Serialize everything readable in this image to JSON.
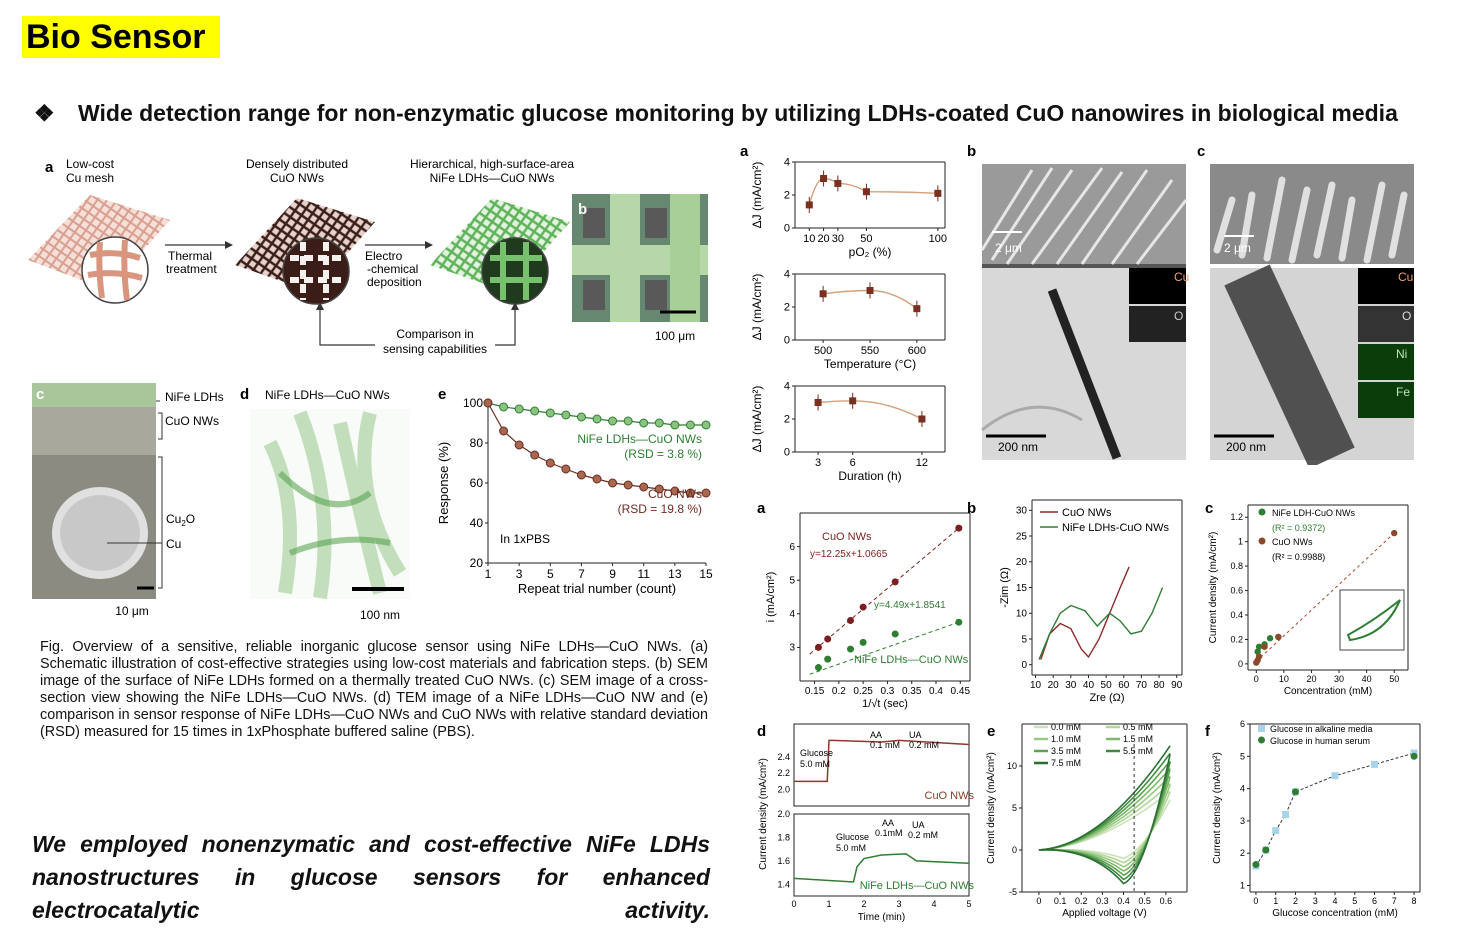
{
  "header": {
    "badge": "Bio Sensor",
    "bullet": "❖",
    "title": "Wide detection range for non-enzymatic glucose monitoring by utilizing LDHs-coated CuO nanowires in biological media"
  },
  "left_figure": {
    "panel_a": {
      "label": "a",
      "step1_line1": "Low-cost",
      "step1_line2": "Cu mesh",
      "step2_line1": "Densely distributed",
      "step2_line2": "CuO NWs",
      "step3_line1": "Hierarchical, high-surface-area",
      "step3_line2": "NiFe LDHs—CuO NWs",
      "arrow1_line1": "Thermal",
      "arrow1_line2": "treatment",
      "arrow2_line1": "Electro",
      "arrow2_line2": "-chemical",
      "arrow2_line3": "deposition",
      "compare_line1": "Comparison in",
      "compare_line2": "sensing capabilities"
    },
    "panel_b": {
      "label": "b",
      "scale": "100 μm"
    },
    "panel_c": {
      "label": "c",
      "layer1": "NiFe LDHs",
      "layer2": "CuO NWs",
      "layer3": "Cu",
      "layer3_sub": "2",
      "layer3_tail": "O",
      "layer4": "Cu",
      "scale": "10 μm"
    },
    "panel_d": {
      "label": "d",
      "title": "NiFe LDHs—CuO NWs",
      "scale": "100 nm"
    },
    "panel_e": {
      "label": "e",
      "note": "In 1xPBS",
      "series1_label": "NiFe LDHs—CuO NWs",
      "series1_rsd": "(RSD = 3.8 %)",
      "series2_label": "CuO NWs",
      "series2_rsd": "(RSD = 19.8 %)"
    }
  },
  "caption": "Fig. Overview of a sensitive, reliable inorganic glucose sensor using NiFe LDHs—CuO NWs. (a) Schematic illustration of cost-effective strategies using low-cost materials and fabrication steps. (b) SEM image of the surface of NiFe LDHs formed on a thermally treated CuO NWs. (c) SEM image of a cross-section view showing the NiFe LDHs—CuO NWs. (d) TEM image of a NiFe LDHs—CuO NW and (e) comparison in sensor response of NiFe LDHs—CuO NWs and CuO NWs with relative standard deviation (RSD) measured for 15 times in 1xPhosphate buffered saline (PBS).",
  "summary": "We employed nonenzymatic and cost-effective NiFe LDHs nanostructures in glucose sensors for enhanced electrocatalytic activity.",
  "right_top": {
    "label_a": "a",
    "label_b": "b",
    "label_c": "c",
    "b_scale1": "2 μm",
    "b_scale2": "200 nm",
    "b_map1": "Cu",
    "b_map2": "O",
    "c_scale1": "2 μm",
    "c_scale2": "200 nm",
    "c_map1": "Cu",
    "c_map2": "O",
    "c_map3": "Ni",
    "c_map4": "Fe"
  },
  "right_bottom": {
    "label_a": "a",
    "label_b": "b",
    "label_c": "c",
    "label_d": "d",
    "label_e": "e",
    "label_f": "f",
    "a_s1": "CuO NWs",
    "a_eq1": "y=12.25x+1.0665",
    "a_eq2": "y=4.49x+1.8541",
    "a_s2": "NiFe LDHs—CuO NWs",
    "b_legend1": "CuO NWs",
    "b_legend2": "NiFe LDHs-CuO NWs",
    "c_legend1": "NiFe LDH-CuO NWs",
    "c_r1": "(R² = 0.9372)",
    "c_legend2": "CuO NWs",
    "c_r2": "(R² = 0.9988)",
    "d_glucose": "Glucose",
    "d_glucose_c": "5.0 mM",
    "d_aa": "AA",
    "d_aa_c": "0.1 mM",
    "d_ua": "UA",
    "d_ua_c": "0.2 mM",
    "d_s1": "CuO NWs",
    "d_glucose2": "Glucose",
    "d_glucose2_c": "5.0 mM",
    "d_aa2": "AA",
    "d_aa2_c": "0.1mM",
    "d_ua2": "UA",
    "d_ua2_c": "0.2 mM",
    "d_s2": "NiFe LDHs—CuO NWs",
    "e_legend": [
      "0.0 mM",
      "0.5 mM",
      "1.0 mM",
      "1.5 mM",
      "3.5 mM",
      "5.5 mM",
      "7.5 mM"
    ],
    "f_legend1": "Glucose in alkaline media",
    "f_legend2": "Glucose in human serum"
  },
  "colors": {
    "accent_red": "#8b3a2a",
    "accent_green": "#2e7d32",
    "badge": "#ffff00"
  },
  "chart_data": [
    {
      "id": "left-e",
      "type": "line",
      "xlabel": "Repeat trial number (count)",
      "ylabel": "Response (%)",
      "xlim": [
        1,
        15
      ],
      "ylim": [
        20,
        100
      ],
      "xticks": [
        1,
        3,
        5,
        7,
        9,
        11,
        13,
        15
      ],
      "yticks": [
        20,
        40,
        60,
        80,
        100
      ],
      "series": [
        {
          "name": "NiFe LDHs—CuO NWs",
          "x": [
            1,
            2,
            3,
            4,
            5,
            6,
            7,
            8,
            9,
            10,
            11,
            12,
            13,
            14,
            15
          ],
          "values": [
            100,
            98,
            97,
            96,
            95,
            94,
            93,
            92,
            91,
            91,
            90,
            90,
            89,
            89,
            89
          ]
        },
        {
          "name": "CuO NWs",
          "x": [
            1,
            2,
            3,
            4,
            5,
            6,
            7,
            8,
            9,
            10,
            11,
            12,
            13,
            14,
            15
          ],
          "values": [
            100,
            86,
            79,
            74,
            70,
            67,
            64,
            62,
            60,
            59,
            58,
            57,
            56,
            55,
            55
          ]
        }
      ]
    },
    {
      "id": "right-a1",
      "type": "scatter",
      "xlabel": "pO₂ (%)",
      "ylabel": "ΔJ (mA/cm²)",
      "xlim": [
        0,
        105
      ],
      "ylim": [
        0,
        4
      ],
      "xticks": [
        10,
        20,
        30,
        50,
        100
      ],
      "yticks": [
        0,
        2,
        4
      ],
      "series": [
        {
          "name": "ΔJ",
          "x": [
            10,
            20,
            30,
            50,
            100
          ],
          "values": [
            1.4,
            3.0,
            2.7,
            2.2,
            2.1
          ]
        }
      ]
    },
    {
      "id": "right-a2",
      "type": "scatter",
      "xlabel": "Temperature (°C)",
      "ylabel": "ΔJ (mA/cm²)",
      "xlim": [
        470,
        630
      ],
      "ylim": [
        0,
        4
      ],
      "xticks": [
        500,
        550,
        600
      ],
      "yticks": [
        0,
        2,
        4
      ],
      "series": [
        {
          "name": "ΔJ",
          "x": [
            500,
            550,
            600
          ],
          "values": [
            2.8,
            3.0,
            1.9
          ]
        }
      ]
    },
    {
      "id": "right-a3",
      "type": "scatter",
      "xlabel": "Duration (h)",
      "ylabel": "ΔJ (mA/cm²)",
      "xlim": [
        1,
        14
      ],
      "ylim": [
        0,
        4
      ],
      "xticks": [
        3,
        6,
        12
      ],
      "yticks": [
        0,
        2,
        4
      ],
      "series": [
        {
          "name": "ΔJ",
          "x": [
            3,
            6,
            12
          ],
          "values": [
            3.0,
            3.1,
            2.0
          ]
        }
      ]
    },
    {
      "id": "right-ba",
      "type": "scatter",
      "xlabel": "1/√t (sec)",
      "ylabel": "i (mA/cm²)",
      "xlim": [
        0.12,
        0.47
      ],
      "ylim": [
        2,
        7
      ],
      "xticks": [
        0.15,
        0.2,
        0.25,
        0.3,
        0.35,
        0.4,
        0.45
      ],
      "yticks": [
        3,
        4,
        5,
        6
      ],
      "series": [
        {
          "name": "CuO NWs",
          "x": [
            0.158,
            0.177,
            0.224,
            0.25,
            0.316,
            0.447
          ],
          "values": [
            3.0,
            3.25,
            3.8,
            4.2,
            4.95,
            6.55
          ]
        },
        {
          "name": "NiFe LDHs—CuO NWs",
          "x": [
            0.158,
            0.177,
            0.224,
            0.25,
            0.316,
            0.447
          ],
          "values": [
            2.4,
            2.65,
            2.95,
            3.15,
            3.4,
            3.75
          ]
        }
      ]
    },
    {
      "id": "right-bb",
      "type": "line",
      "xlabel": "Zre (Ω)",
      "ylabel": "-Zim (Ω)",
      "xlim": [
        8,
        93
      ],
      "ylim": [
        -2,
        32
      ],
      "xticks": [
        10,
        20,
        30,
        40,
        50,
        60,
        70,
        80,
        90
      ],
      "yticks": [
        0,
        5,
        10,
        15,
        20,
        25,
        30
      ],
      "series": [
        {
          "name": "CuO NWs",
          "x": [
            13,
            18,
            24,
            30,
            36,
            40,
            46,
            52,
            58,
            63
          ],
          "values": [
            1,
            6,
            8,
            7,
            3,
            1.5,
            5,
            10,
            15,
            19
          ]
        },
        {
          "name": "NiFe LDHs-CuO NWs",
          "x": [
            12,
            18,
            24,
            30,
            38,
            45,
            52,
            58,
            64,
            70,
            76,
            82
          ],
          "values": [
            1,
            6,
            10,
            11.5,
            10.5,
            7.5,
            10,
            8.5,
            6,
            6.5,
            10,
            15
          ]
        }
      ]
    },
    {
      "id": "right-bc",
      "type": "scatter",
      "xlabel": "Concentration (mM)",
      "ylabel": "Current density (mA/cm²)",
      "xlim": [
        -3,
        55
      ],
      "ylim": [
        -0.05,
        1.3
      ],
      "xticks": [
        0,
        10,
        20,
        30,
        40,
        50
      ],
      "yticks": [
        0.0,
        0.2,
        0.4,
        0.6,
        0.8,
        1.0,
        1.2
      ],
      "series": [
        {
          "name": "NiFe LDH-CuO NWs",
          "x": [
            0.5,
            1,
            3,
            5,
            8
          ],
          "values": [
            0.1,
            0.14,
            0.16,
            0.21,
            0.22
          ]
        },
        {
          "name": "CuO NWs",
          "x": [
            0,
            0.5,
            1,
            3,
            8,
            50
          ],
          "values": [
            0.01,
            0.03,
            0.06,
            0.14,
            0.22,
            1.07
          ]
        }
      ]
    },
    {
      "id": "right-bd",
      "type": "line",
      "xlabel": "Time (min)",
      "ylabel": "Current density (mA/cm²)",
      "xlim": [
        0,
        5
      ],
      "ylim": [
        1.3,
        2.8
      ],
      "xticks": [
        0,
        1,
        2,
        3,
        4,
        5
      ],
      "yticks": [
        1.4,
        1.6,
        1.8,
        2.0,
        2.2,
        2.4
      ],
      "series": [
        {
          "name": "CuO NWs",
          "x": [
            0,
            0.95,
            1.0,
            1.1,
            2.5,
            3.0,
            5.0
          ],
          "values": [
            2.1,
            2.1,
            2.6,
            2.6,
            2.58,
            2.6,
            2.55
          ]
        },
        {
          "name": "NiFe LDHs—CuO NWs",
          "x": [
            0,
            1.7,
            1.8,
            2.0,
            2.5,
            3.2,
            3.5,
            5.0
          ],
          "values": [
            1.45,
            1.42,
            1.55,
            1.62,
            1.65,
            1.66,
            1.6,
            1.58
          ]
        }
      ]
    },
    {
      "id": "right-be",
      "type": "line",
      "xlabel": "Applied voltage (V)",
      "ylabel": "Current density (mA/cm²)",
      "xlim": [
        -0.08,
        0.7
      ],
      "ylim": [
        -5,
        15
      ],
      "xticks": [
        0.0,
        0.1,
        0.2,
        0.3,
        0.4,
        0.5,
        0.6
      ],
      "yticks": [
        -5,
        0,
        5,
        10
      ],
      "series": [
        {
          "name": "0.0 mM",
          "values_at_0_6": 6.5
        },
        {
          "name": "7.5 mM",
          "values_at_0_6": 11.5
        }
      ]
    },
    {
      "id": "right-bf",
      "type": "scatter",
      "xlabel": "Glucose concentration (mM)",
      "ylabel": "Current density (mA/cm²)",
      "xlim": [
        -0.3,
        8.3
      ],
      "ylim": [
        0.8,
        6
      ],
      "xticks": [
        0,
        1,
        2,
        3,
        4,
        5,
        6,
        7,
        8
      ],
      "yticks": [
        1,
        2,
        3,
        4,
        5,
        6
      ],
      "series": [
        {
          "name": "Glucose in alkaline media",
          "x": [
            0,
            0.5,
            1,
            1.5,
            2,
            4,
            6,
            8
          ],
          "values": [
            1.6,
            2.1,
            2.7,
            3.2,
            3.9,
            4.4,
            4.75,
            5.1
          ]
        },
        {
          "name": "Glucose in human serum",
          "x": [
            0,
            0.5,
            2,
            8
          ],
          "values": [
            1.65,
            2.1,
            3.9,
            5.0
          ]
        }
      ]
    }
  ]
}
